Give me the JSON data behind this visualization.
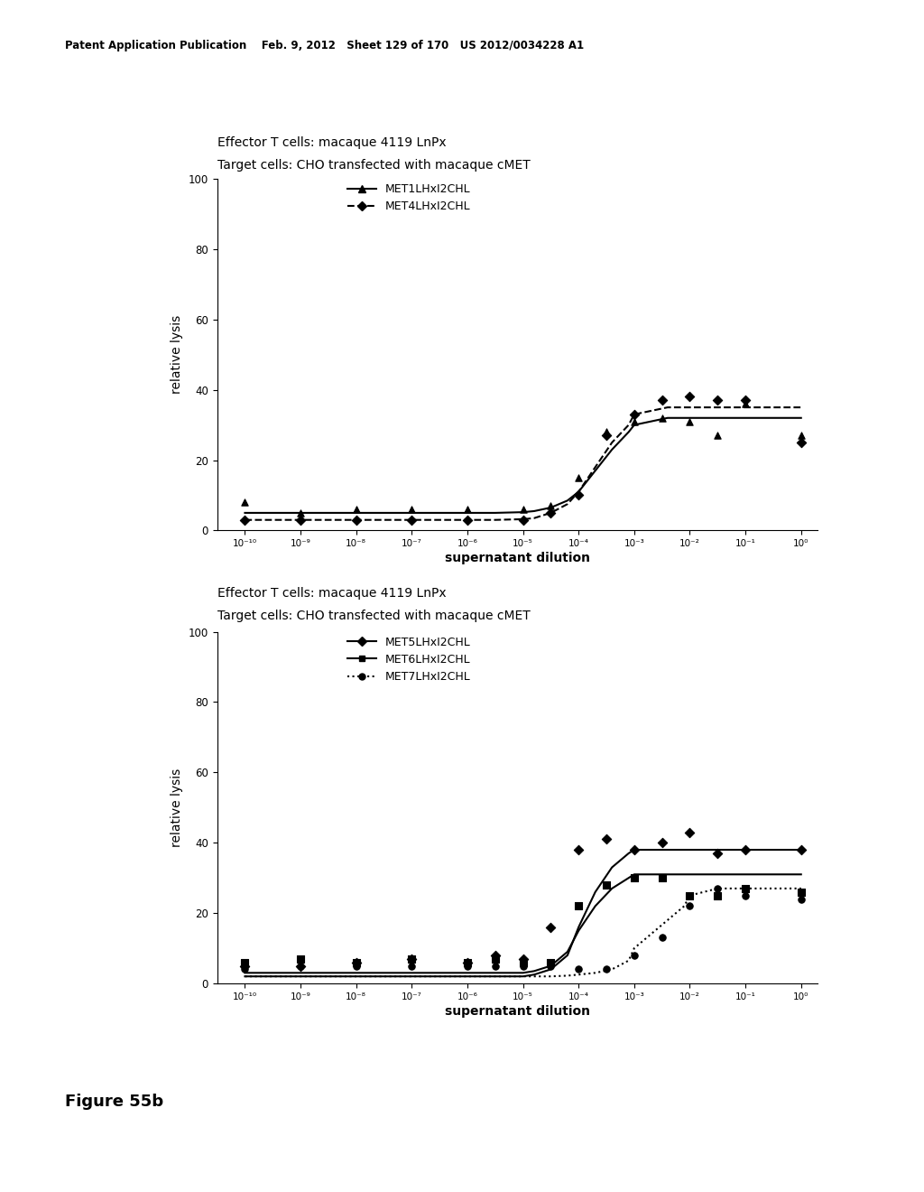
{
  "header_text": "Patent Application Publication    Feb. 9, 2012   Sheet 129 of 170   US 2012/0034228 A1",
  "figure_label": "Figure 55b",
  "plot1": {
    "title1": "Effector T cells: macaque 4119 LnPx",
    "title2": "Target cells: CHO transfected with macaque cMET",
    "ylabel": "relative lysis",
    "xlabel": "supernatant dilution",
    "series": [
      {
        "label": "MET1LHxI2CHL",
        "style": "solid",
        "marker": "^",
        "scatter_x": [
          -10,
          -9,
          -8,
          -7,
          -6,
          -5,
          -4.5,
          -4,
          -3.5,
          -3,
          -2.5,
          -2,
          -1.5,
          -1,
          0
        ],
        "scatter_y": [
          8,
          5,
          6,
          6,
          6,
          6,
          7,
          15,
          28,
          31,
          32,
          31,
          27,
          36,
          27
        ],
        "curve_x": [
          -10,
          -9,
          -8,
          -7,
          -6,
          -5.5,
          -5,
          -4.8,
          -4.5,
          -4.2,
          -4,
          -3.7,
          -3.4,
          -3.1,
          -3,
          -2.7,
          -2.4,
          -2,
          -1.5,
          -1,
          0
        ],
        "curve_y": [
          5,
          5,
          5,
          5,
          5,
          5,
          5.2,
          5.5,
          6.5,
          8.5,
          11,
          17,
          23,
          28,
          30,
          31,
          32,
          32,
          32,
          32,
          32
        ]
      },
      {
        "label": "MET4LHxI2CHL",
        "style": "dashed",
        "marker": "D",
        "scatter_x": [
          -10,
          -9,
          -8,
          -7,
          -6,
          -5,
          -4.5,
          -4,
          -3.5,
          -3,
          -2.5,
          -2,
          -1.5,
          -1,
          0
        ],
        "scatter_y": [
          3,
          3,
          3,
          3,
          3,
          3,
          5,
          10,
          27,
          33,
          37,
          38,
          37,
          37,
          25
        ],
        "curve_x": [
          -10,
          -9,
          -8,
          -7,
          -6,
          -5.5,
          -5,
          -4.8,
          -4.5,
          -4.2,
          -4,
          -3.7,
          -3.4,
          -3.1,
          -3,
          -2.7,
          -2.4,
          -2,
          -1.5,
          -1,
          0
        ],
        "curve_y": [
          3,
          3,
          3,
          3,
          3,
          3,
          3.2,
          3.5,
          5,
          7.5,
          11,
          18,
          25,
          30,
          33,
          34,
          35,
          35,
          35,
          35,
          35
        ]
      }
    ]
  },
  "plot2": {
    "title1": "Effector T cells: macaque 4119 LnPx",
    "title2": "Target cells: CHO transfected with macaque cMET",
    "ylabel": "relative lysis",
    "xlabel": "supernatant dilution",
    "series": [
      {
        "label": "MET5LHxI2CHL",
        "style": "solid",
        "marker": "D",
        "scatter_x": [
          -10,
          -9,
          -8,
          -7,
          -6,
          -5.5,
          -5,
          -4.5,
          -4,
          -3.5,
          -3,
          -2.5,
          -2,
          -1.5,
          -1,
          0
        ],
        "scatter_y": [
          5,
          5,
          6,
          7,
          6,
          8,
          7,
          16,
          38,
          41,
          38,
          40,
          43,
          37,
          38,
          38
        ],
        "curve_x": [
          -10,
          -9,
          -8,
          -7,
          -6,
          -5,
          -4.8,
          -4.5,
          -4.2,
          -4,
          -3.7,
          -3.4,
          -3.1,
          -3,
          -2.5,
          -2,
          -1.5,
          -1,
          0
        ],
        "curve_y": [
          2,
          2,
          2,
          2,
          2,
          2,
          2.5,
          4,
          8,
          16,
          26,
          33,
          37,
          38,
          38,
          38,
          38,
          38,
          38
        ]
      },
      {
        "label": "MET6LHxI2CHL",
        "style": "solid",
        "marker": "s",
        "scatter_x": [
          -10,
          -9,
          -8,
          -7,
          -6,
          -5.5,
          -5,
          -4.5,
          -4,
          -3.5,
          -3,
          -2.5,
          -2,
          -1.5,
          -1,
          0
        ],
        "scatter_y": [
          6,
          7,
          6,
          7,
          6,
          7,
          6,
          6,
          22,
          28,
          30,
          30,
          25,
          25,
          27,
          26
        ],
        "curve_x": [
          -10,
          -9,
          -8,
          -7,
          -6,
          -5,
          -4.8,
          -4.5,
          -4.2,
          -4,
          -3.7,
          -3.4,
          -3.1,
          -3,
          -2.5,
          -2,
          -1.5,
          -1,
          0
        ],
        "curve_y": [
          3,
          3,
          3,
          3,
          3,
          3,
          3.5,
          5,
          9,
          15,
          22,
          27,
          30,
          31,
          31,
          31,
          31,
          31,
          31
        ]
      },
      {
        "label": "MET7LHxI2CHL",
        "style": "dotted",
        "marker": "o",
        "scatter_x": [
          -10,
          -9,
          -8,
          -7,
          -6,
          -5.5,
          -5,
          -4.5,
          -4,
          -3.5,
          -3,
          -2.5,
          -2,
          -1.5,
          -1,
          0
        ],
        "scatter_y": [
          4,
          5,
          5,
          5,
          5,
          5,
          5,
          5,
          4,
          4,
          8,
          13,
          22,
          27,
          25,
          24
        ],
        "curve_x": [
          -10,
          -9,
          -8,
          -7,
          -6,
          -5,
          -4.8,
          -4.5,
          -4.2,
          -4,
          -3.7,
          -3.4,
          -3.1,
          -3,
          -2.7,
          -2.4,
          -2.1,
          -2,
          -1.5,
          -1,
          0
        ],
        "curve_y": [
          2,
          2,
          2,
          2,
          2,
          2,
          2,
          2,
          2.2,
          2.5,
          3,
          4,
          6.5,
          10,
          14,
          18,
          22,
          25,
          27,
          27,
          27
        ]
      }
    ]
  },
  "background_color": "#ffffff",
  "text_color": "#000000",
  "xtick_positions": [
    -10,
    -9,
    -8,
    -7,
    -6,
    -5,
    -4,
    -3,
    -2,
    -1,
    0
  ],
  "xtick_labels": [
    "10⁻¹⁰",
    "10⁻⁹",
    "10⁻⁸",
    "10⁻⁷",
    "10⁻⁶",
    "10⁻⁵",
    "10⁻⁴",
    "10⁻³",
    "10⁻²",
    "10⁻¹",
    "10⁰"
  ]
}
